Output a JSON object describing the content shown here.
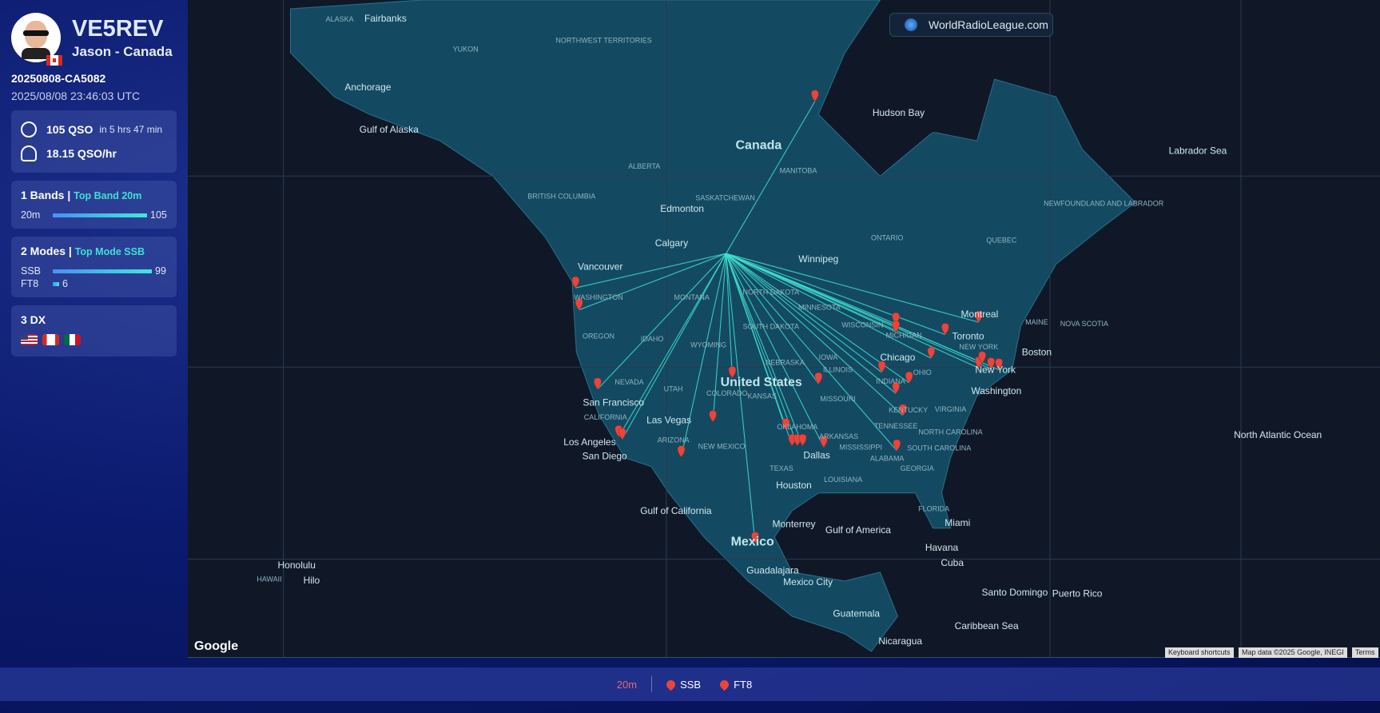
{
  "profile": {
    "callsign": "VE5REV",
    "name": "Jason - Canada",
    "log_id": "20250808-CA5082",
    "timestamp": "2025/08/08 23:46:03 UTC"
  },
  "stats": {
    "qso": "105 QSO",
    "duration": "in 5 hrs 47 min",
    "rate": "18.15 QSO/hr"
  },
  "bands": {
    "title": "1 Bands |",
    "top": "Top Band 20m",
    "items": [
      {
        "label": "20m",
        "value": "105",
        "fraction": 1.0
      }
    ]
  },
  "modes": {
    "title": "2 Modes |",
    "top": "Top Mode SSB",
    "items": [
      {
        "label": "SSB",
        "value": "99",
        "fraction": 0.943
      },
      {
        "label": "FT8",
        "value": "6",
        "fraction": 0.057
      }
    ]
  },
  "dx": {
    "title": "3 DX",
    "flags": [
      "us-flag",
      "ca-flag",
      "mx-flag"
    ]
  },
  "map": {
    "brand": "WorldRadioLeague.com",
    "google": "Google",
    "attribution": [
      "Keyboard shortcuts",
      "Map data ©2025 Google, INEGI",
      "Terms"
    ],
    "labels_big": [
      "Canada",
      "United States",
      "Mexico"
    ],
    "labels": [
      "ALASKA",
      "Fairbanks",
      "YUKON",
      "NORTHWEST TERRITORIES",
      "Anchorage",
      "Gulf of Alaska",
      "Hudson Bay",
      "ALBERTA",
      "MANITOBA",
      "BRITISH COLUMBIA",
      "SASKATCHEWAN",
      "Edmonton",
      "Calgary",
      "Winnipeg",
      "ONTARIO",
      "QUEBEC",
      "NEWFOUNDLAND AND LABRADOR",
      "Labrador Sea",
      "Vancouver",
      "WASHINGTON",
      "MONTANA",
      "NORTH DAKOTA",
      "MINNESOTA",
      "OREGON",
      "IDAHO",
      "SOUTH DAKOTA",
      "WYOMING",
      "WISCONSIN",
      "MICHIGAN",
      "Toronto",
      "Montreal",
      "NEW YORK",
      "Boston",
      "New York",
      "NEVADA",
      "UTAH",
      "COLORADO",
      "NEBRASKA",
      "IOWA",
      "ILLINOIS",
      "INDIANA",
      "OHIO",
      "Chicago",
      "Washington",
      "San Francisco",
      "CALIFORNIA",
      "Las Vegas",
      "KANSAS",
      "MISSOURI",
      "KENTUCKY",
      "VIRGINIA",
      "Los Angeles",
      "San Diego",
      "ARIZONA",
      "NEW MEXICO",
      "OKLAHOMA",
      "ARKANSAS",
      "TENNESSEE",
      "NORTH CAROLINA",
      "Dallas",
      "TEXAS",
      "MISSISSIPPI",
      "ALABAMA",
      "GEORGIA",
      "SOUTH CAROLINA",
      "Houston",
      "LOUISIANA",
      "FLORIDA",
      "Miami",
      "Gulf of America",
      "Monterrey",
      "Gulf of California",
      "Havana",
      "Cuba",
      "Guadalajara",
      "Mexico City",
      "Santo Domingo",
      "Puerto Rico",
      "Guatemala",
      "Caribbean Sea",
      "Nicaragua",
      "Honolulu",
      "HAWAII",
      "Hilo",
      "North Atlantic Ocean",
      "NOVA SCOTIA",
      "MAINE"
    ],
    "line_color": "#3fe0d0",
    "marker_color": "#e8453c"
  },
  "legend": {
    "band": "20m",
    "modes": [
      "SSB",
      "FT8"
    ]
  }
}
